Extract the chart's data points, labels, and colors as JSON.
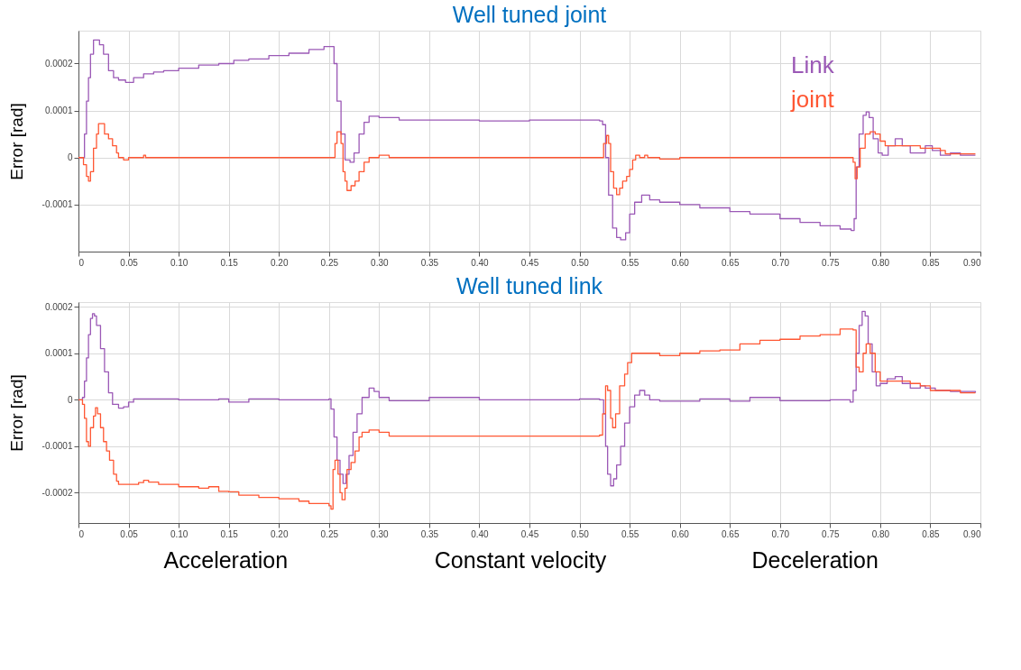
{
  "chart_data": [
    {
      "type": "step",
      "title": "Well tuned joint",
      "ylabel": "Error [rad]",
      "grid": true,
      "legend": "top right",
      "line_style": "solid",
      "xlim": [
        0,
        0.9
      ],
      "xticks": [
        0,
        0.05,
        {
          "value": 0.1,
          "label": "0.10"
        },
        0.15,
        {
          "value": 0.2,
          "label": "0.20"
        },
        0.25,
        {
          "value": 0.3,
          "label": "0.30"
        },
        0.35,
        {
          "value": 0.4,
          "label": "0.40"
        },
        0.45,
        {
          "value": 0.5,
          "label": "0.50"
        },
        0.55,
        {
          "value": 0.6,
          "label": "0.60"
        },
        0.65,
        {
          "value": 0.7,
          "label": "0.70"
        },
        0.75,
        {
          "value": 0.8,
          "label": "0.80"
        },
        0.85,
        {
          "value": 0.9,
          "label": "0.90"
        }
      ],
      "ylim": [
        -0.0002,
        0.00027
      ],
      "yticks": [
        -0.0001,
        0,
        0.0001,
        0.0002
      ],
      "series": [
        {
          "name": "Link",
          "color": "#9b59b6",
          "x": [
            0,
            0.004,
            0.006,
            0.008,
            0.01,
            0.012,
            0.015,
            0.018,
            0.021,
            0.025,
            0.03,
            0.035,
            0.04,
            0.047,
            0.055,
            0.065,
            0.075,
            0.085,
            0.1,
            0.12,
            0.14,
            0.155,
            0.17,
            0.19,
            0.21,
            0.23,
            0.245,
            0.252,
            0.255,
            0.258,
            0.262,
            0.266,
            0.271,
            0.275,
            0.28,
            0.285,
            0.29,
            0.3,
            0.32,
            0.35,
            0.4,
            0.45,
            0.5,
            0.52,
            0.523,
            0.526,
            0.529,
            0.533,
            0.537,
            0.541,
            0.546,
            0.55,
            0.555,
            0.562,
            0.57,
            0.58,
            0.6,
            0.62,
            0.65,
            0.67,
            0.7,
            0.72,
            0.74,
            0.76,
            0.771,
            0.774,
            0.776,
            0.779,
            0.783,
            0.786,
            0.789,
            0.793,
            0.798,
            0.802,
            0.808,
            0.815,
            0.822,
            0.83,
            0.837,
            0.845,
            0.852,
            0.86,
            0.87,
            0.88,
            0.895
          ],
          "values": [
            0,
            0,
            5e-05,
            0.00012,
            0.00017,
            0.00022,
            0.00025,
            0.00025,
            0.00024,
            0.00022,
            0.000185,
            0.00017,
            0.000165,
            0.00016,
            0.00017,
            0.000178,
            0.000182,
            0.000185,
            0.00019,
            0.000197,
            0.0002,
            0.000207,
            0.00021,
            0.000217,
            0.000222,
            0.00023,
            0.000236,
            0.000236,
            0.0002,
            0.00012,
            5e-05,
            -5e-06,
            -1e-05,
            1e-05,
            5e-05,
            7.5e-05,
            8.8e-05,
            8.5e-05,
            8e-05,
            8e-05,
            7.8e-05,
            8e-05,
            8e-05,
            7.8e-05,
            7e-05,
            0,
            -8e-05,
            -0.00015,
            -0.00017,
            -0.000175,
            -0.00016,
            -0.00012,
            -9.5e-05,
            -8e-05,
            -9e-05,
            -9.5e-05,
            -0.0001,
            -0.000107,
            -0.000115,
            -0.00012,
            -0.00013,
            -0.000138,
            -0.000145,
            -0.000152,
            -0.000155,
            -0.00013,
            -2e-05,
            5e-05,
            9e-05,
            9.7e-05,
            8.5e-05,
            4e-05,
            1e-05,
            5e-06,
            2.5e-05,
            4e-05,
            2.5e-05,
            1e-05,
            1e-05,
            2.5e-05,
            1.5e-05,
            5e-06,
            1e-05,
            5e-06,
            5e-06
          ]
        },
        {
          "name": "joint",
          "color": "#ff5733",
          "x": [
            0,
            0.005,
            0.008,
            0.01,
            0.012,
            0.015,
            0.018,
            0.02,
            0.024,
            0.026,
            0.03,
            0.034,
            0.038,
            0.04,
            0.045,
            0.05,
            0.065,
            0.067,
            0.1,
            0.2,
            0.25,
            0.256,
            0.258,
            0.262,
            0.264,
            0.266,
            0.268,
            0.272,
            0.276,
            0.28,
            0.285,
            0.29,
            0.3,
            0.31,
            0.4,
            0.52,
            0.524,
            0.527,
            0.529,
            0.531,
            0.534,
            0.537,
            0.54,
            0.543,
            0.547,
            0.55,
            0.553,
            0.556,
            0.56,
            0.565,
            0.568,
            0.58,
            0.6,
            0.7,
            0.77,
            0.773,
            0.775,
            0.777,
            0.78,
            0.785,
            0.79,
            0.795,
            0.8,
            0.805,
            0.82,
            0.84,
            0.86,
            0.865,
            0.895
          ],
          "values": [
            0,
            -1.5e-05,
            -4e-05,
            -5e-05,
            -3e-05,
            2e-05,
            5e-05,
            7.2e-05,
            7.2e-05,
            5e-05,
            4e-05,
            2.5e-05,
            1e-05,
            0,
            -5e-06,
            0,
            5e-06,
            0,
            0,
            0,
            0,
            3e-05,
            5.5e-05,
            3e-05,
            -3e-05,
            -5e-05,
            -7e-05,
            -6e-05,
            -5e-05,
            -3e-05,
            -1e-05,
            0,
            5e-06,
            0,
            0,
            0,
            3e-05,
            4.7e-05,
            3e-05,
            -3e-05,
            -6.5e-05,
            -7.9e-05,
            -6.5e-05,
            -5e-05,
            -4e-05,
            -2.5e-05,
            -5e-06,
            5e-06,
            0,
            5e-06,
            0,
            -3e-06,
            0,
            0,
            0,
            -1e-05,
            -4.5e-05,
            -2e-05,
            2e-05,
            5e-05,
            5.5e-05,
            5e-05,
            3.5e-05,
            2.5e-05,
            2.5e-05,
            2e-05,
            1.5e-05,
            8e-06,
            8e-06
          ]
        }
      ]
    },
    {
      "type": "step",
      "title": "Well tuned link",
      "ylabel": "Error [rad]",
      "grid": true,
      "line_style": "solid",
      "annotations": [
        "Acceleration",
        "Constant velocity",
        "Deceleration"
      ],
      "xlim": [
        0,
        0.9
      ],
      "xticks": [
        0,
        0.05,
        {
          "value": 0.1,
          "label": "0.10"
        },
        0.15,
        {
          "value": 0.2,
          "label": "0.20"
        },
        0.25,
        {
          "value": 0.3,
          "label": "0.30"
        },
        0.35,
        {
          "value": 0.4,
          "label": "0.40"
        },
        0.45,
        {
          "value": 0.5,
          "label": "0.50"
        },
        0.55,
        {
          "value": 0.6,
          "label": "0.60"
        },
        0.65,
        {
          "value": 0.7,
          "label": "0.70"
        },
        0.75,
        {
          "value": 0.8,
          "label": "0.80"
        },
        0.85,
        {
          "value": 0.9,
          "label": "0.90"
        }
      ],
      "ylim": [
        -0.000265,
        0.00021
      ],
      "yticks": [
        -0.0002,
        -0.0001,
        0,
        0.0001,
        0.0002
      ],
      "series": [
        {
          "color": "#9b59b6",
          "x": [
            0,
            0.004,
            0.006,
            0.008,
            0.01,
            0.012,
            0.014,
            0.016,
            0.018,
            0.022,
            0.026,
            0.03,
            0.034,
            0.04,
            0.045,
            0.05,
            0.055,
            0.07,
            0.1,
            0.14,
            0.15,
            0.17,
            0.2,
            0.25,
            0.252,
            0.255,
            0.258,
            0.261,
            0.264,
            0.267,
            0.27,
            0.274,
            0.278,
            0.283,
            0.29,
            0.295,
            0.3,
            0.31,
            0.35,
            0.4,
            0.5,
            0.52,
            0.524,
            0.526,
            0.528,
            0.531,
            0.534,
            0.537,
            0.541,
            0.545,
            0.55,
            0.555,
            0.56,
            0.565,
            0.57,
            0.58,
            0.6,
            0.62,
            0.65,
            0.67,
            0.7,
            0.75,
            0.77,
            0.773,
            0.776,
            0.779,
            0.782,
            0.785,
            0.788,
            0.792,
            0.796,
            0.8,
            0.807,
            0.815,
            0.822,
            0.83,
            0.84,
            0.845,
            0.855,
            0.87,
            0.895
          ],
          "values": [
            0,
            5e-06,
            4e-05,
            9e-05,
            0.00014,
            0.000175,
            0.000185,
            0.00018,
            0.00016,
            0.00011,
            6e-05,
            1.5e-05,
            -1e-05,
            -1.8e-05,
            -1.5e-05,
            -5e-06,
            2e-06,
            2e-06,
            0,
            2e-06,
            -5e-06,
            2e-06,
            0,
            2e-06,
            -2e-05,
            -8e-05,
            -0.00013,
            -0.00016,
            -0.00018,
            -0.00016,
            -0.00012,
            -7e-05,
            -3e-05,
            5e-06,
            2.5e-05,
            1.8e-05,
            5e-06,
            -2e-06,
            5e-06,
            0,
            2e-06,
            0,
            -3e-05,
            -0.0001,
            -0.00016,
            -0.000185,
            -0.00017,
            -0.00014,
            -0.0001,
            -5e-05,
            -1.5e-05,
            1e-05,
            2e-05,
            1e-05,
            0,
            -3e-06,
            -3e-06,
            2e-06,
            -3e-06,
            5e-06,
            -2e-06,
            0,
            -5e-06,
            2e-05,
            0.0001,
            0.00016,
            0.00019,
            0.00018,
            0.00012,
            6e-05,
            3e-05,
            3.5e-05,
            4.5e-05,
            5e-05,
            3.5e-05,
            2.5e-05,
            3e-05,
            2.5e-05,
            2e-05,
            1.8e-05,
            1.5e-05
          ]
        },
        {
          "color": "#ff5733",
          "x": [
            0,
            0.004,
            0.006,
            0.008,
            0.01,
            0.012,
            0.015,
            0.017,
            0.019,
            0.022,
            0.025,
            0.028,
            0.031,
            0.035,
            0.038,
            0.04,
            0.06,
            0.065,
            0.07,
            0.08,
            0.1,
            0.12,
            0.13,
            0.14,
            0.15,
            0.16,
            0.18,
            0.2,
            0.22,
            0.23,
            0.25,
            0.252,
            0.254,
            0.256,
            0.259,
            0.261,
            0.263,
            0.266,
            0.268,
            0.272,
            0.276,
            0.28,
            0.283,
            0.29,
            0.3,
            0.31,
            0.4,
            0.52,
            0.523,
            0.526,
            0.528,
            0.531,
            0.533,
            0.536,
            0.54,
            0.545,
            0.548,
            0.552,
            0.56,
            0.58,
            0.6,
            0.62,
            0.64,
            0.66,
            0.68,
            0.7,
            0.72,
            0.74,
            0.76,
            0.773,
            0.776,
            0.779,
            0.783,
            0.786,
            0.79,
            0.795,
            0.8,
            0.81,
            0.83,
            0.84,
            0.85,
            0.87,
            0.88,
            0.895
          ],
          "values": [
            0,
            -1e-05,
            -4e-05,
            -9e-05,
            -0.0001,
            -6e-05,
            -3.5e-05,
            -1.7e-05,
            -3e-05,
            -6e-05,
            -9e-05,
            -0.00011,
            -0.00013,
            -0.00016,
            -0.000175,
            -0.000182,
            -0.000178,
            -0.000173,
            -0.000177,
            -0.000182,
            -0.000187,
            -0.00019,
            -0.000187,
            -0.000197,
            -0.000198,
            -0.000205,
            -0.00021,
            -0.000213,
            -0.000218,
            -0.000223,
            -0.000228,
            -0.000235,
            -0.00015,
            -0.00013,
            -0.00016,
            -0.0002,
            -0.000215,
            -0.00019,
            -0.00015,
            -0.000135,
            -0.00011,
            -8e-05,
            -7e-05,
            -6.5e-05,
            -7e-05,
            -7.8e-05,
            -7.8e-05,
            -7.6e-05,
            -3e-05,
            3e-05,
            2e-05,
            -4e-05,
            -6e-05,
            -3e-05,
            3e-05,
            5.5e-05,
            8e-05,
            0.0001,
            0.0001,
            9.5e-05,
            0.0001,
            0.000105,
            0.000107,
            0.00012,
            0.000128,
            0.00013,
            0.000137,
            0.00014,
            0.000152,
            0.00015,
            7e-05,
            6e-05,
            0.0001,
            0.00012,
            0.0001,
            6e-05,
            4e-05,
            4e-05,
            3.5e-05,
            3e-05,
            2e-05,
            2e-05,
            1.5e-05,
            1.5e-05
          ]
        }
      ]
    }
  ]
}
